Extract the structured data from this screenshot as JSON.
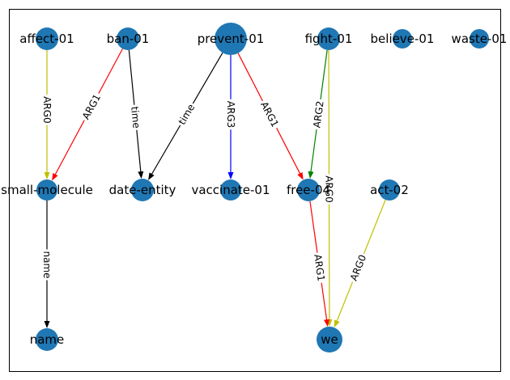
{
  "colors": {
    "node_fill": "#1f77b4",
    "frame": "#000000",
    "label_bg": "#ffffff"
  },
  "nodes": [
    {
      "id": "affect-01",
      "label": "affect-01"
    },
    {
      "id": "ban-01",
      "label": "ban-01"
    },
    {
      "id": "prevent-01",
      "label": "prevent-01"
    },
    {
      "id": "fight-01",
      "label": "fight-01"
    },
    {
      "id": "believe-01",
      "label": "believe-01"
    },
    {
      "id": "waste-01",
      "label": "waste-01"
    },
    {
      "id": "small-molecule",
      "label": "small-molecule"
    },
    {
      "id": "date-entity",
      "label": "date-entity"
    },
    {
      "id": "vaccinate-01",
      "label": "vaccinate-01"
    },
    {
      "id": "free-04",
      "label": "free-04"
    },
    {
      "id": "act-02",
      "label": "act-02"
    },
    {
      "id": "name",
      "label": "name"
    },
    {
      "id": "we",
      "label": "we"
    }
  ],
  "edges": [
    {
      "from": "affect-01",
      "to": "small-molecule",
      "label": "ARG0",
      "color": "#bfbf00"
    },
    {
      "from": "ban-01",
      "to": "small-molecule",
      "label": "ARG1",
      "color": "#ff0000"
    },
    {
      "from": "ban-01",
      "to": "date-entity",
      "label": "time",
      "color": "#000000"
    },
    {
      "from": "prevent-01",
      "to": "date-entity",
      "label": "time",
      "color": "#000000"
    },
    {
      "from": "prevent-01",
      "to": "vaccinate-01",
      "label": "ARG3",
      "color": "#0000ff"
    },
    {
      "from": "prevent-01",
      "to": "free-04",
      "label": "ARG1",
      "color": "#ff0000"
    },
    {
      "from": "fight-01",
      "to": "free-04",
      "label": "ARG2",
      "color": "#008000"
    },
    {
      "from": "fight-01",
      "to": "we",
      "label": "ARG0",
      "color": "#bfbf00"
    },
    {
      "from": "small-molecule",
      "to": "name",
      "label": "name",
      "color": "#000000"
    },
    {
      "from": "free-04",
      "to": "we",
      "label": "ARG1",
      "color": "#ff0000"
    },
    {
      "from": "act-02",
      "to": "we",
      "label": "ARG0",
      "color": "#bfbf00"
    }
  ]
}
